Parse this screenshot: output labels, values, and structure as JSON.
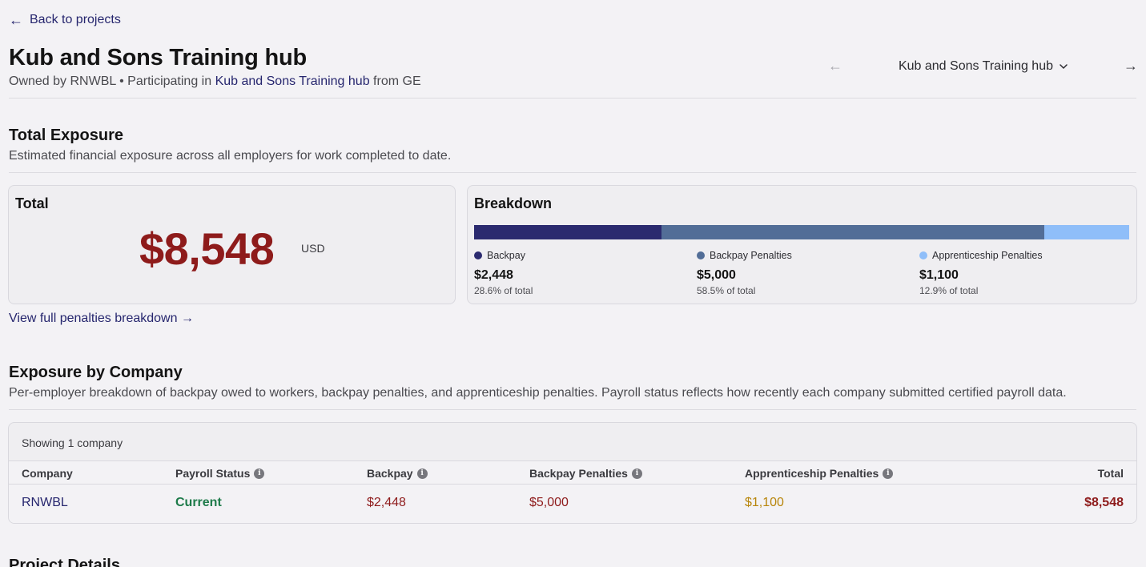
{
  "nav": {
    "back_arrow": "←",
    "back_label": "Back to projects"
  },
  "header": {
    "title": "Kub and Sons Training hub",
    "owner_prefix": "Owned by RNWBL • Participating in",
    "participating_link": "Kub and Sons Training hub",
    "from_suffix": "from GE",
    "selector_value": "Kub and Sons Training hub",
    "prev_arrow": "←",
    "next_arrow": "→"
  },
  "total_exposure": {
    "title": "Total Exposure",
    "description": "Estimated financial exposure across all employers for work completed to date.",
    "total_card": {
      "title": "Total",
      "amount": "$8,548",
      "currency": "USD"
    },
    "breakdown_card": {
      "title": "Breakdown",
      "items": [
        {
          "label": "Backpay",
          "value": "$2,448",
          "pct_label": "28.6% of total",
          "fraction": 0.286,
          "color": "#2b2a6f"
        },
        {
          "label": "Backpay Penalties",
          "value": "$5,000",
          "pct_label": "58.5% of total",
          "fraction": 0.585,
          "color": "#526d97"
        },
        {
          "label": "Apprenticeship Penalties",
          "value": "$1,100",
          "pct_label": "12.9% of total",
          "fraction": 0.129,
          "color": "#8fbef9"
        }
      ]
    },
    "penalties_link": "View full penalties breakdown →"
  },
  "exposure_by_company": {
    "title": "Exposure by Company",
    "description": "Per-employer breakdown of backpay owed to workers, backpay penalties, and apprenticeship penalties. Payroll status reflects how recently each company submitted certified payroll data.",
    "caption": "Showing 1 company",
    "columns": [
      "Company",
      "Payroll Status",
      "Backpay",
      "Backpay Penalties",
      "Apprenticeship Penalties",
      "Total"
    ],
    "info_icon": "i",
    "rows": [
      {
        "company": "RNWBL",
        "status": "Current",
        "backpay": "$2,448",
        "backpay_penalties": "$5,000",
        "apprenticeship_penalties": "$1,100",
        "total": "$8,548"
      }
    ]
  },
  "project_details": {
    "title": "Project Details"
  }
}
